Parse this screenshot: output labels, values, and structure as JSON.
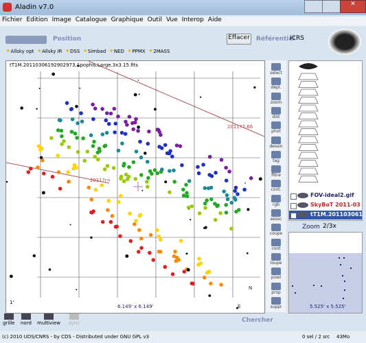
{
  "window": {
    "title": "Aladin v7.0"
  },
  "menu": [
    "Fichier",
    "Edition",
    "Image",
    "Catalogue",
    "Graphique",
    "Outil",
    "Vue",
    "Interop",
    "Aide"
  ],
  "toolbar": {
    "position_label": "Position",
    "clear_button": "Effacer",
    "frame_label": "Référentiel",
    "frame_value": "ICRS"
  },
  "shortcuts": [
    "Allsky opt",
    "Allsky IR",
    "DSS",
    "Simbad",
    "NED",
    "PPMX",
    "2MASS"
  ],
  "view": {
    "file_label": "tT1M.20110306192902973.Apophis.Large.3x3.15.fits",
    "overlay_labels": [
      "2011?7:66",
      "2011?r="
    ],
    "scale": "1'",
    "fov": "6.149' x 6.149'",
    "north": "N",
    "east": "E"
  },
  "tools": [
    "select",
    "dépl.",
    "zoom",
    "dist",
    "phot",
    "dessin",
    "tag",
    "filtre",
    "cont.",
    "rgb",
    "assoc",
    "coupe",
    "cont",
    "loupe",
    "pixel",
    "prop",
    "suppr"
  ],
  "layers": [
    "FOV-ideal2.gif",
    "SkyBoT 2011-03",
    "tT1M.201103061"
  ],
  "zoom": {
    "label": "Zoom",
    "value": "2/3x",
    "fov": "5.525' x 5.525'"
  },
  "bottom": {
    "buttons": [
      "grille",
      "nord",
      "multiview",
      "sync"
    ],
    "search": "Chercher"
  },
  "status": {
    "copyright": "(c) 2010 UDS/CNRS - by CDS - Distributed under GNU GPL v3",
    "selection": "0 sel / 2 src",
    "memory": "43Mo"
  }
}
